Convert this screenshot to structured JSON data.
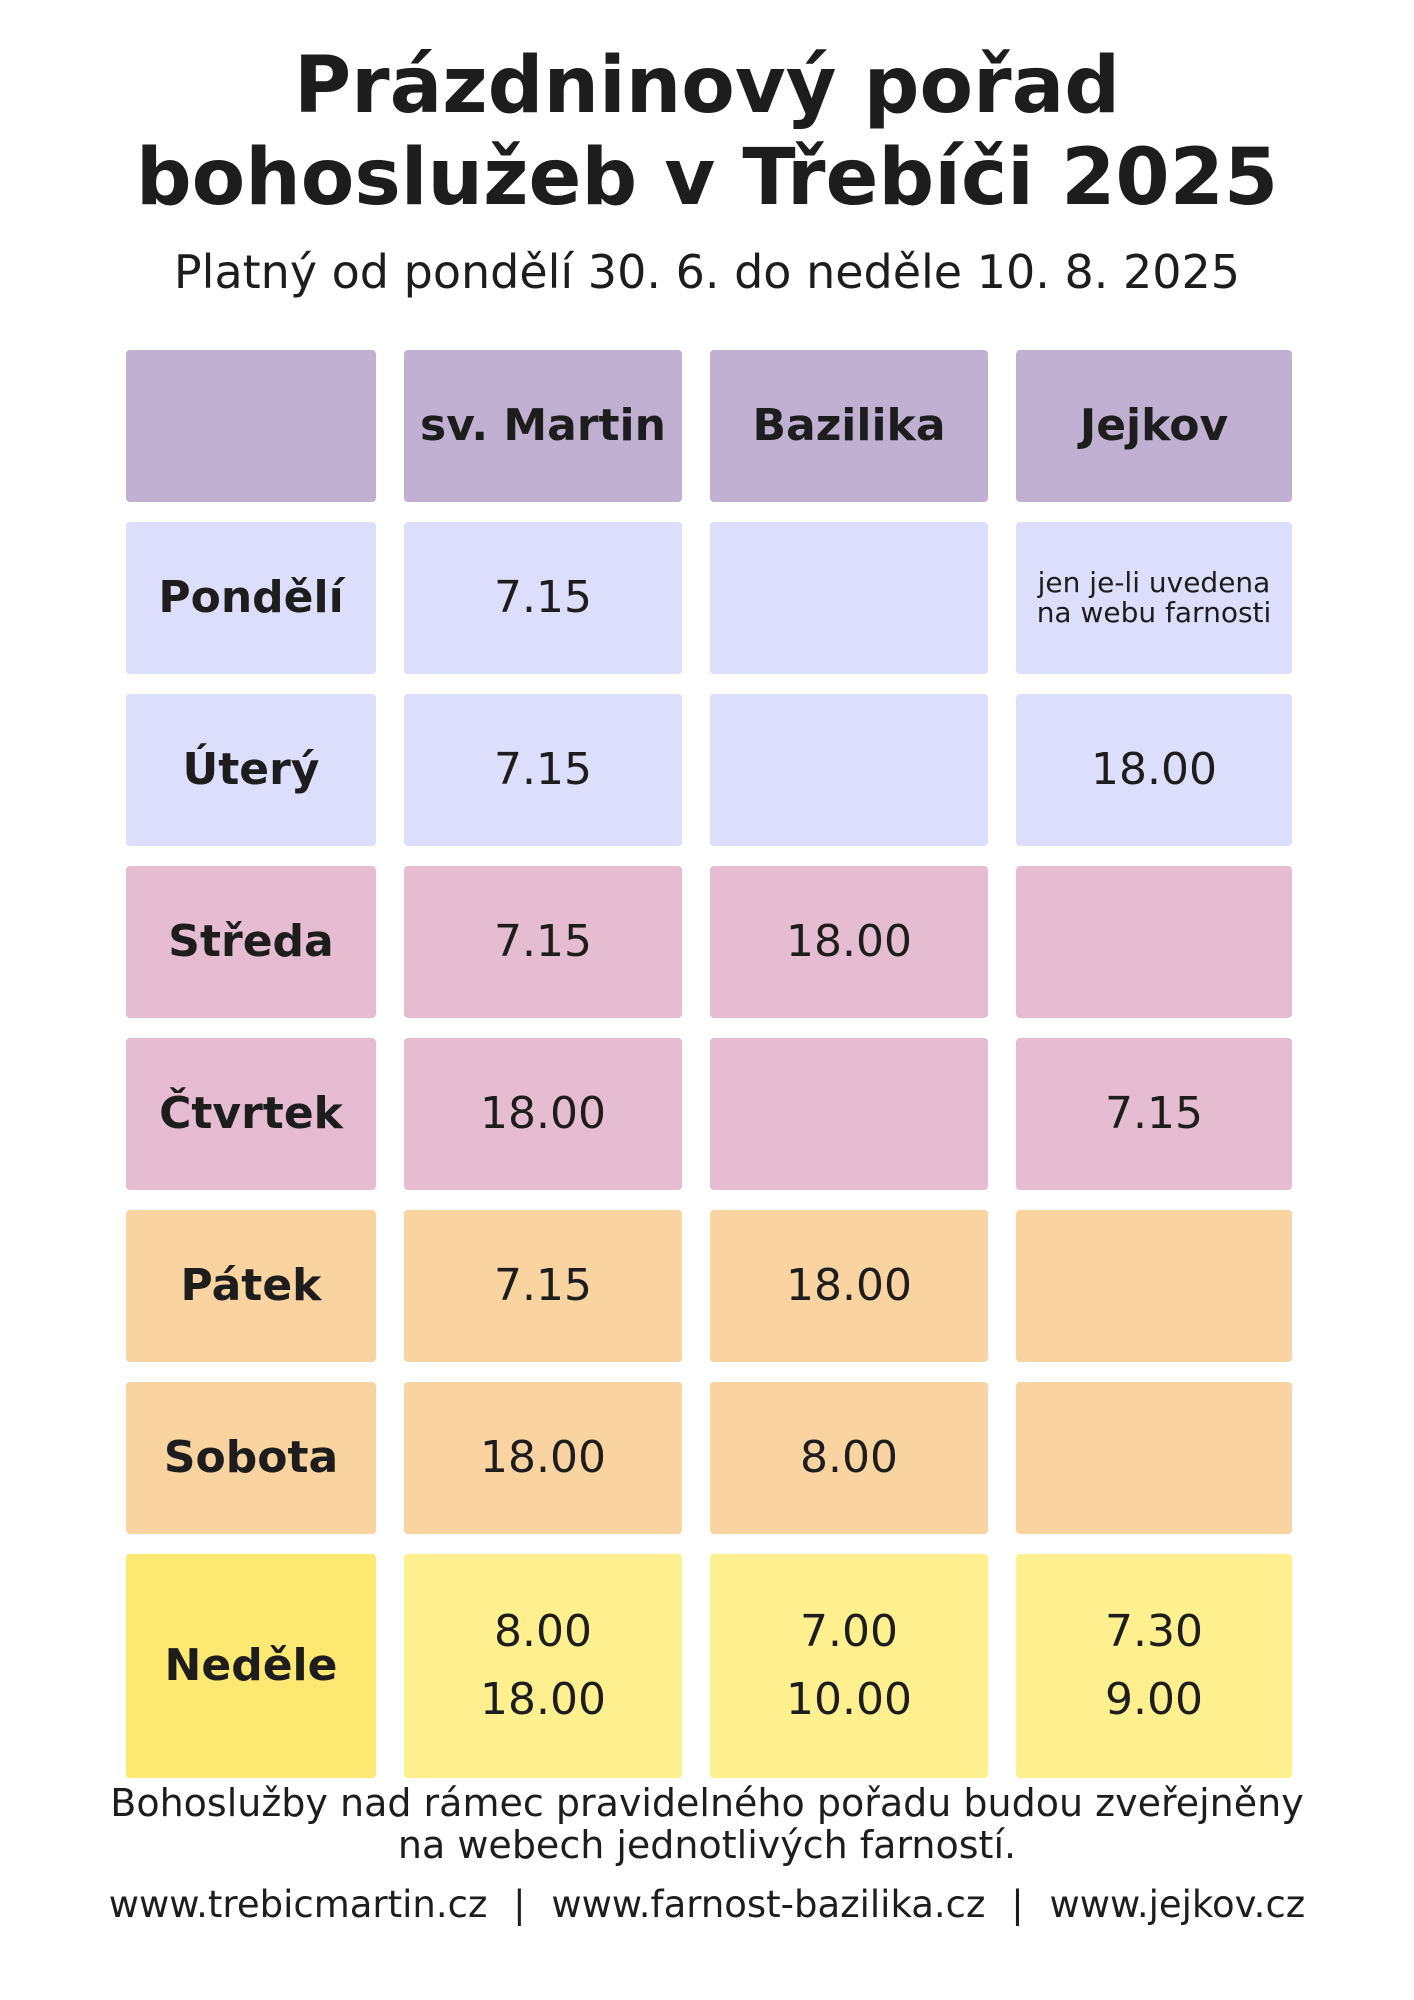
{
  "title_line1": "Prázdninový pořad",
  "title_line2": "bohoslužeb v Třebíči 2025",
  "subtitle": "Platný od pondělí 30. 6. do neděle 10. 8. 2025",
  "columns": [
    "",
    "sv. Martin",
    "Bazilika",
    "Jejkov"
  ],
  "rows": [
    {
      "day": "Pondělí",
      "martin": [
        "7.15"
      ],
      "bazilika": [],
      "jejkov": [
        "jen je-li uvedena",
        "na webu farnosti"
      ]
    },
    {
      "day": "Úterý",
      "martin": [
        "7.15"
      ],
      "bazilika": [],
      "jejkov": [
        "18.00"
      ]
    },
    {
      "day": "Středa",
      "martin": [
        "7.15"
      ],
      "bazilika": [
        "18.00"
      ],
      "jejkov": []
    },
    {
      "day": "Čtvrtek",
      "martin": [
        "18.00"
      ],
      "bazilika": [],
      "jejkov": [
        "7.15"
      ]
    },
    {
      "day": "Pátek",
      "martin": [
        "7.15"
      ],
      "bazilika": [
        "18.00"
      ],
      "jejkov": []
    },
    {
      "day": "Sobota",
      "martin": [
        "18.00"
      ],
      "bazilika": [
        "8.00"
      ],
      "jejkov": []
    },
    {
      "day": "Neděle",
      "martin": [
        "8.00",
        "18.00"
      ],
      "bazilika": [
        "7.00",
        "10.00"
      ],
      "jejkov": [
        "7.30",
        "9.00"
      ]
    }
  ],
  "footer_note_line1": "Bohoslužby nad rámec pravidelného pořadu budou zveřejněny",
  "footer_note_line2": "na webech jednotlivých farností.",
  "links": [
    "www.trebicmartin.cz",
    "www.farnost-bazilika.cz",
    "www.jejkov.cz"
  ],
  "link_separator": "|",
  "colors": {
    "header": "#c0b0d2",
    "mon_tue": "#dddefc",
    "wed_thu": "#e6bcd0",
    "fri_sat": "#f9d3a0",
    "sunday": "#fef08f",
    "sunday_label": "#fde872"
  }
}
